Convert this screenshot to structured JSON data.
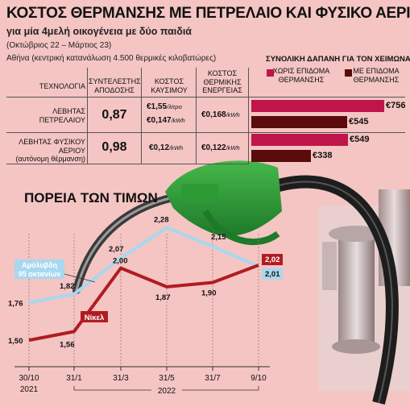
{
  "header": {
    "title": "ΚΟΣΤΟΣ ΘΕΡΜΑΝΣΗΣ ΜΕ ΠΕΤΡΕΛΑΙΟ ΚΑΙ ΦΥΣΙΚΟ ΑΕΡΙΟ",
    "subtitle": "για μία 4μελή οικογένεια με δύο παιδιά",
    "period": "(Οκτώβριος 22 – Μάρτιος 23)",
    "note": "Αθήνα (κεντρική κατανάλωση 4.500 θερμικές κιλοβατώρες)"
  },
  "table": {
    "col_tech": "ΤΕΧΝΟΛΟΓΙΑ",
    "col_eff": "ΣΥΝΤΕΛΕΣΤΗΣ ΑΠΟΔΟΣΗΣ",
    "col_fuel": "ΚΟΣΤΟΣ ΚΑΥΣΙΜΟΥ",
    "col_energy": "ΚΟΣΤΟΣ ΘΕΡΜΙΚΗΣ ΕΝΕΡΓΕΙΑΣ",
    "spend_title": "ΣΥΝΟΛΙΚΗ ΔΑΠΑΝΗ ΓΙΑ ΤΟΝ ΧΕΙΜΩΝΑ",
    "legend_without": "ΧΩΡΙΣ ΕΠΙΔΟΜΑ ΘΕΡΜΑΝΣΗΣ",
    "legend_with": "ΜΕ ΕΠΙΔΟΜΑ ΘΕΡΜΑΝΣΗΣ",
    "color_without": "#c0154a",
    "color_with": "#5a0b0b",
    "rows": [
      {
        "tech": "ΛΕΒΗΤΑΣ ΠΕΤΡΕΛΑΙΟΥ",
        "tech_note": "",
        "efficiency": "0,87",
        "fuel_cost_1": "€1,55",
        "fuel_unit_1": "/λίτρο",
        "fuel_cost_2": "€0,147",
        "fuel_unit_2": "/kWh",
        "energy_cost": "€0,168",
        "energy_unit": "/kWh",
        "spend_without": 756,
        "spend_without_label": "€756",
        "spend_with": 545,
        "spend_with_label": "€545"
      },
      {
        "tech": "ΛΕΒΗΤΑΣ ΦΥΣΙΚΟΥ ΑΕΡΙΟΥ",
        "tech_note": "(αυτόνομη θέρμανση)",
        "efficiency": "0,98",
        "fuel_cost_1": "€0,12",
        "fuel_unit_1": "/kWh",
        "energy_cost": "€0,122",
        "energy_unit": "/kWh",
        "spend_without": 549,
        "spend_without_label": "€549",
        "spend_with": 338,
        "spend_with_label": "€338"
      }
    ]
  },
  "chart_data": {
    "type": "line",
    "title": "ΠΟΡΕΙΑ ΤΩΝ ΤΙΜΩΝ",
    "categories": [
      "30/10\n2021",
      "31/1",
      "31/3",
      "31/5",
      "31/7",
      "9/10"
    ],
    "x_tick_top": [
      "30/10",
      "31/1",
      "31/3",
      "31/5",
      "31/7",
      "9/10"
    ],
    "x_tick_year_first": "2021",
    "x_group_label": "2022",
    "ylim": [
      1.4,
      2.35
    ],
    "series": [
      {
        "name": "Αμόλυβδη 95 οκτανίων",
        "color": "#a8d8ef",
        "values": [
          1.76,
          1.82,
          2.07,
          2.28,
          2.15,
          2.01
        ],
        "labels": [
          "1,76",
          "1,82",
          "2,07",
          "2,28",
          "2,15",
          "2,01"
        ]
      },
      {
        "name": "Νίκελ",
        "color": "#b01c22",
        "values": [
          1.5,
          1.56,
          2.0,
          1.87,
          1.9,
          2.02
        ],
        "labels": [
          "1,50",
          "1,56",
          "2,00",
          "1,87",
          "1,90",
          "2,02"
        ]
      }
    ]
  }
}
